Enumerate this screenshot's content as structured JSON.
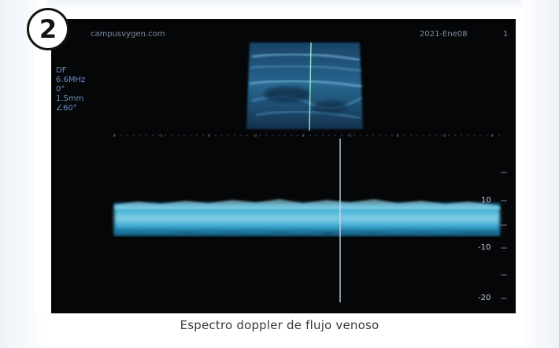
{
  "badge": {
    "number": "2"
  },
  "monitor": {
    "website": "campusvygen.com",
    "date": "2021-Ene08",
    "date_suffix": "1",
    "settings": [
      "DF",
      "6.6MHz",
      "0°",
      "1.5mm",
      "∠60°"
    ],
    "scale_labels": [
      "10",
      "-10",
      "-20"
    ]
  },
  "caption": "Espectro doppler de flujo venoso",
  "colors": {
    "monitor_bg": "#050608",
    "doppler_cyan": "#3ab7e6",
    "hud_text": "#7e8da3"
  }
}
